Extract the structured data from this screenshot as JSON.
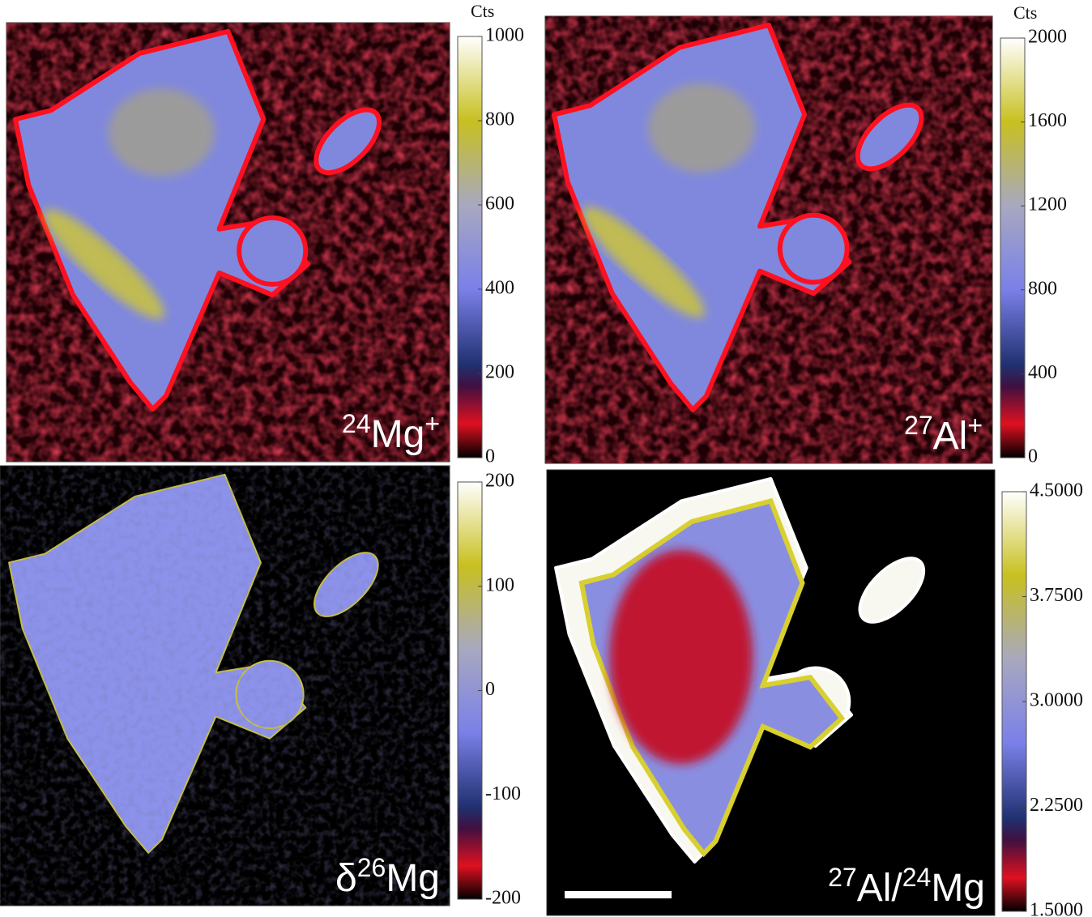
{
  "panels": [
    {
      "label": [
        {
          "sup": "24"
        },
        {
          "text": "Mg"
        },
        {
          "sup": "+"
        }
      ],
      "unit": "Cts",
      "clim": [
        0,
        1000
      ],
      "ticks": [
        0,
        200,
        400,
        600,
        800,
        1000
      ]
    },
    {
      "label": [
        {
          "sup": "27"
        },
        {
          "text": "Al"
        },
        {
          "sup": "+"
        }
      ],
      "unit": "Cts",
      "clim": [
        0,
        2000
      ],
      "ticks": [
        0,
        400,
        800,
        1200,
        1600,
        2000
      ]
    },
    {
      "label": [
        {
          "text": "δ"
        },
        {
          "sup": "26"
        },
        {
          "text": "Mg"
        }
      ],
      "clim": [
        -200,
        200
      ],
      "ticks": [
        -200,
        -100,
        0,
        100,
        200
      ]
    },
    {
      "label": [
        {
          "sup": "27"
        },
        {
          "text": "Al/"
        },
        {
          "sup": "24"
        },
        {
          "text": "Mg"
        }
      ],
      "clim": [
        1.5,
        4.5
      ],
      "ticks": [
        {
          "value": 1.5,
          "label": "1.5000"
        },
        {
          "value": 2.25,
          "label": "2.2500"
        },
        {
          "value": 3,
          "label": "3.0000"
        },
        {
          "value": 3.75,
          "label": "3.7500"
        },
        {
          "value": 4.5,
          "label": "4.5000"
        }
      ]
    }
  ]
}
